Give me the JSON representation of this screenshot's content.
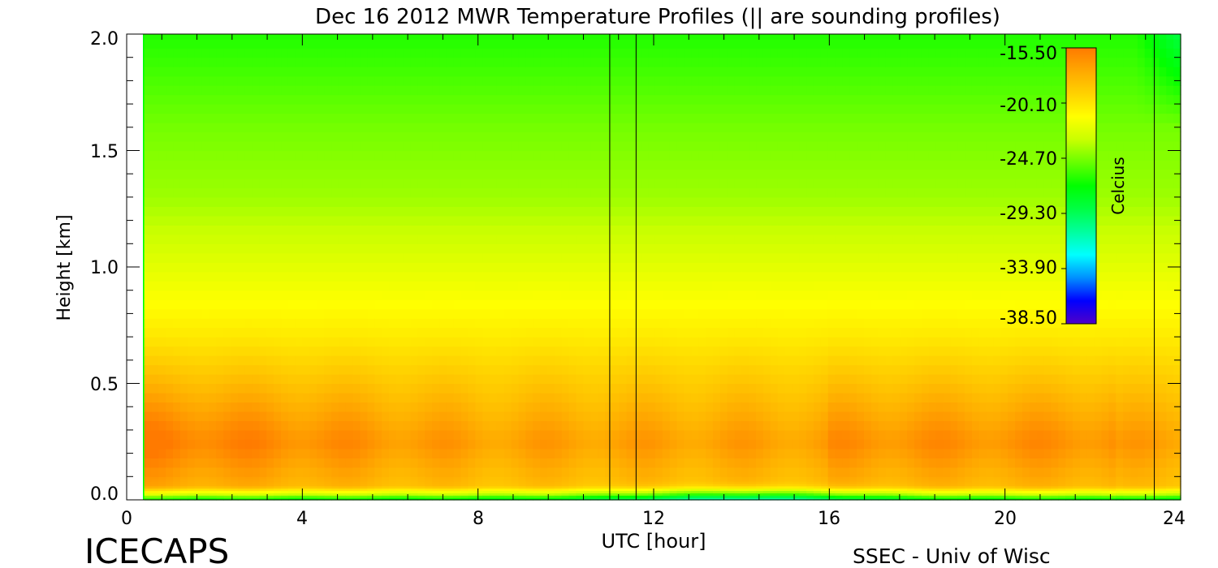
{
  "chart_data": {
    "type": "heatmap",
    "title": "Dec 16 2012 MWR Temperature Profiles (|| are sounding profiles)",
    "xlabel": "UTC [hour]",
    "ylabel": "Height [km]",
    "xlim": [
      0,
      24
    ],
    "ylim": [
      0,
      2.0
    ],
    "x_ticks": [
      "0",
      "4",
      "8",
      "12",
      "16",
      "20",
      "24"
    ],
    "y_ticks": [
      "0.0",
      "0.5",
      "1.0",
      "1.5",
      "2.0"
    ],
    "data_x_start": 0.4,
    "data_x_end": 24.0,
    "colorbar": {
      "label": "Celcius",
      "min": -38.5,
      "max": -15.5,
      "ticks": [
        "-15.50",
        "-20.10",
        "-24.70",
        "-29.30",
        "-33.90",
        "-38.50"
      ]
    },
    "sounding_times": [
      11.0,
      11.6,
      23.4
    ],
    "palette": [
      "#5000c8",
      "#0000ff",
      "#0090ff",
      "#00ffff",
      "#00ff9e",
      "#00ff44",
      "#00ff00",
      "#66ff00",
      "#c8ff00",
      "#ffff00",
      "#ffd200",
      "#ffa800",
      "#ff7a00"
    ]
  },
  "footer": {
    "left": "ICECAPS",
    "right": "SSEC - Univ of Wisc"
  }
}
